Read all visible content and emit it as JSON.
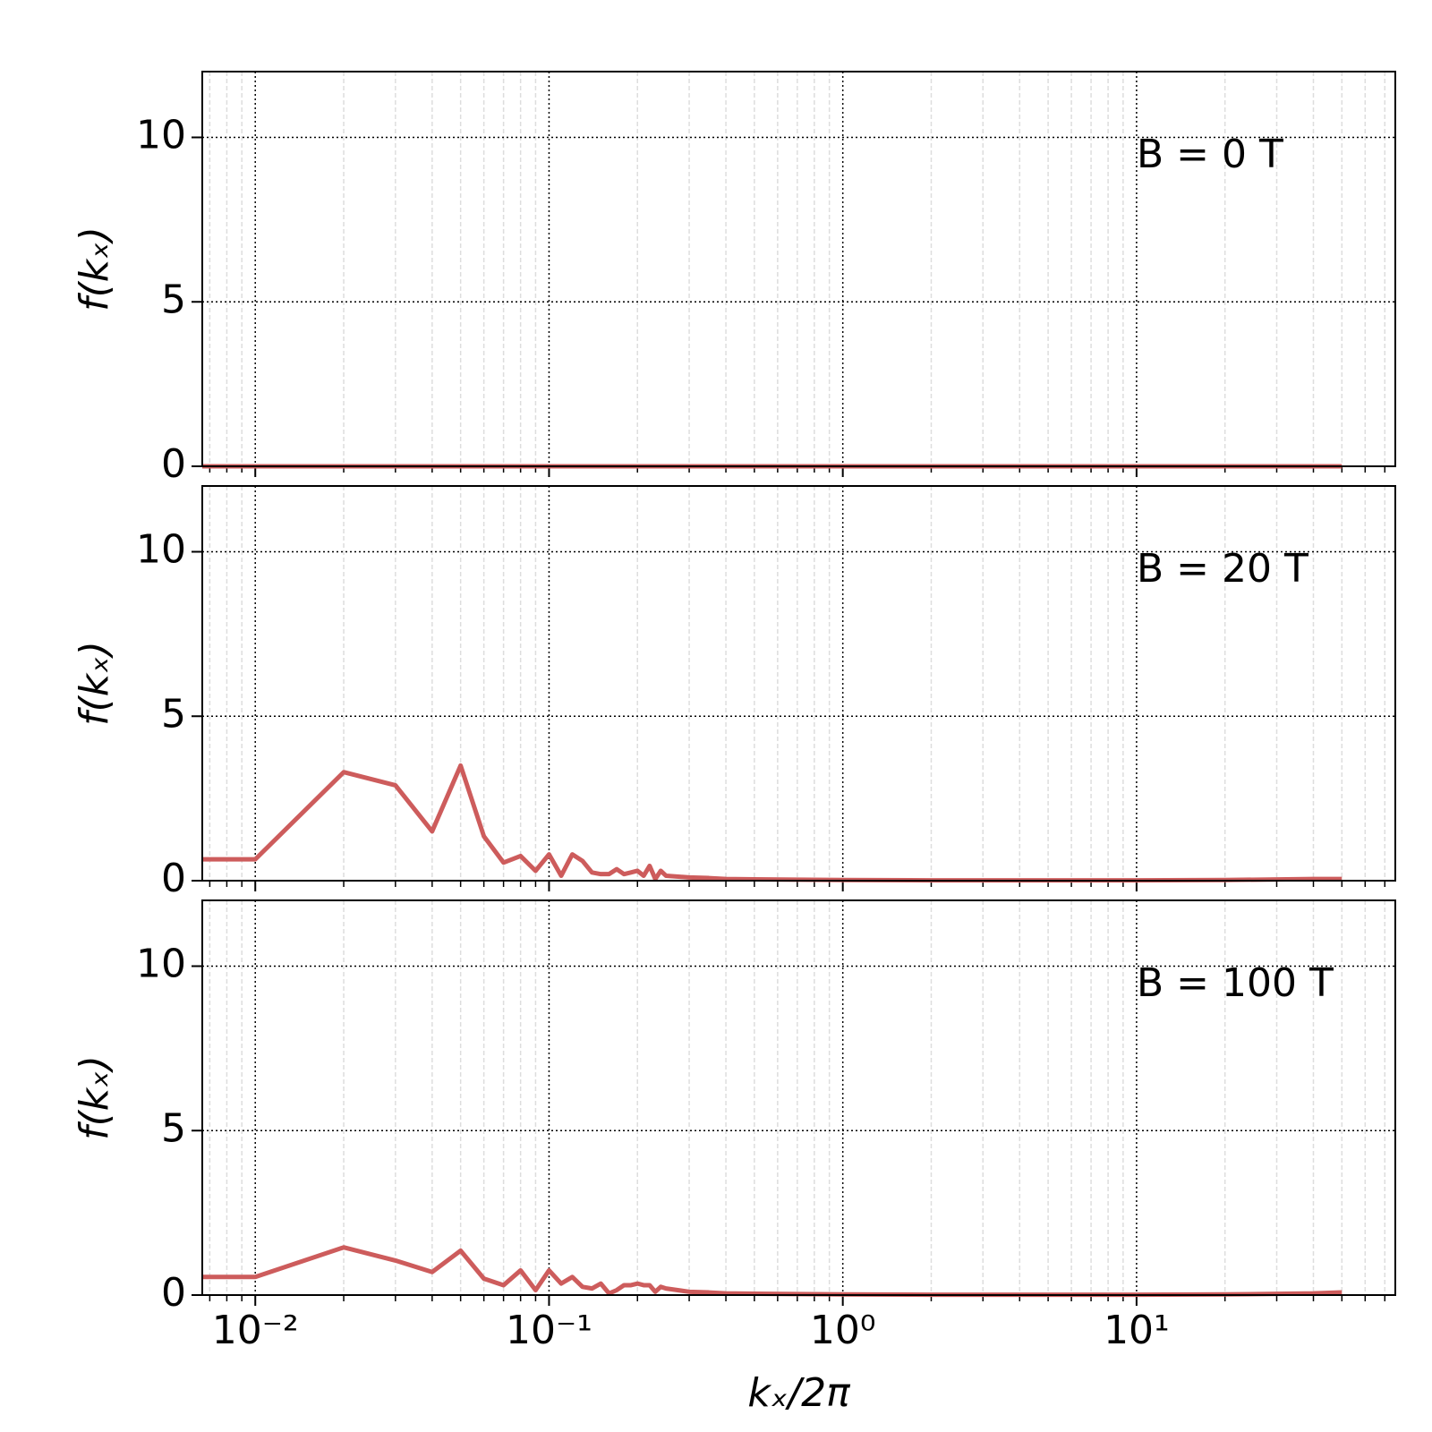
{
  "chart_data": [
    {
      "type": "line",
      "xscale": "log",
      "grid": true,
      "color": "#cd5c5c",
      "annotation": "B = 0 T",
      "ylabel": "f(kₓ)",
      "xlim": [
        0.0066,
        76
      ],
      "ylim": [
        0,
        12
      ],
      "xticks": [
        0.01,
        0.1,
        1,
        10
      ],
      "yticks": [
        0,
        5,
        10
      ],
      "x": [
        0.0066,
        0.01,
        0.1,
        1,
        10,
        50
      ],
      "values": [
        0,
        0,
        0,
        0,
        0,
        0
      ]
    },
    {
      "type": "line",
      "xscale": "log",
      "grid": true,
      "color": "#cd5c5c",
      "annotation": "B = 20 T",
      "ylabel": "f(kₓ)",
      "xlim": [
        0.0066,
        76
      ],
      "ylim": [
        0,
        12
      ],
      "xticks": [
        0.01,
        0.1,
        1,
        10
      ],
      "yticks": [
        0,
        5,
        10
      ],
      "x": [
        0.0066,
        0.01,
        0.02,
        0.03,
        0.04,
        0.05,
        0.06,
        0.07,
        0.08,
        0.09,
        0.1,
        0.11,
        0.12,
        0.13,
        0.14,
        0.15,
        0.16,
        0.17,
        0.18,
        0.19,
        0.2,
        0.21,
        0.22,
        0.23,
        0.24,
        0.25,
        0.3,
        0.35,
        0.4,
        0.5,
        0.7,
        1,
        2,
        5,
        10,
        20,
        40,
        50
      ],
      "values": [
        0.65,
        0.65,
        3.3,
        2.9,
        1.5,
        3.5,
        1.35,
        0.55,
        0.75,
        0.3,
        0.8,
        0.15,
        0.8,
        0.6,
        0.25,
        0.2,
        0.2,
        0.35,
        0.2,
        0.25,
        0.3,
        0.15,
        0.45,
        0.05,
        0.3,
        0.15,
        0.1,
        0.08,
        0.05,
        0.04,
        0.03,
        0.02,
        0.01,
        0.01,
        0.01,
        0.02,
        0.05,
        0.05
      ]
    },
    {
      "type": "line",
      "xscale": "log",
      "grid": true,
      "color": "#cd5c5c",
      "annotation": "B = 100 T",
      "ylabel": "f(kₓ)",
      "xlabel": "kₓ/2π",
      "xlim": [
        0.0066,
        76
      ],
      "ylim": [
        0,
        12
      ],
      "xticks": [
        {
          "value": 0.01,
          "label": "10⁻²"
        },
        {
          "value": 0.1,
          "label": "10⁻¹"
        },
        {
          "value": 1,
          "label": "10⁰"
        },
        {
          "value": 10,
          "label": "10¹"
        }
      ],
      "yticks": [
        0,
        5,
        10
      ],
      "x": [
        0.0066,
        0.01,
        0.02,
        0.03,
        0.04,
        0.05,
        0.06,
        0.07,
        0.08,
        0.09,
        0.1,
        0.11,
        0.12,
        0.13,
        0.14,
        0.15,
        0.16,
        0.17,
        0.18,
        0.19,
        0.2,
        0.21,
        0.22,
        0.23,
        0.24,
        0.25,
        0.3,
        0.35,
        0.4,
        0.5,
        0.7,
        1,
        2,
        5,
        10,
        20,
        40,
        50
      ],
      "values": [
        0.55,
        0.55,
        1.45,
        1.05,
        0.7,
        1.35,
        0.5,
        0.3,
        0.75,
        0.15,
        0.75,
        0.35,
        0.55,
        0.25,
        0.2,
        0.35,
        0.05,
        0.15,
        0.3,
        0.3,
        0.35,
        0.3,
        0.3,
        0.1,
        0.25,
        0.2,
        0.1,
        0.08,
        0.05,
        0.04,
        0.03,
        0.02,
        0.01,
        0.01,
        0.01,
        0.02,
        0.05,
        0.08
      ]
    }
  ]
}
